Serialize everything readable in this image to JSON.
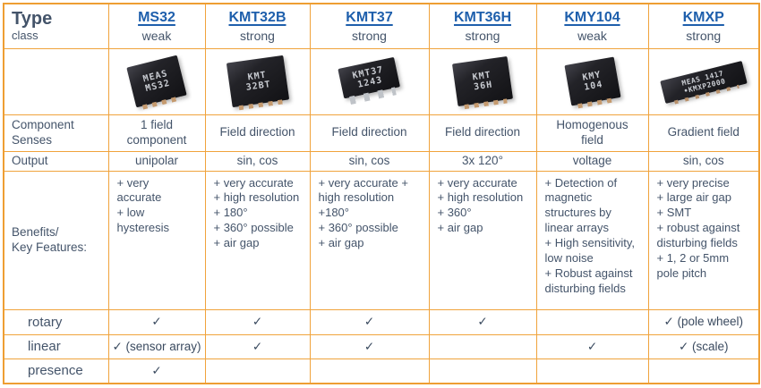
{
  "colors": {
    "border_orange": "#F0A33C",
    "text_slate": "#44546A",
    "link_blue": "#1E5FAC",
    "check_color": "#3A4A5F"
  },
  "table": {
    "corner": {
      "title": "Type",
      "subtitle": "class"
    },
    "columns": [
      {
        "id": "ms32",
        "name": "MS32",
        "strength": "weak",
        "chip": {
          "style": "qfn",
          "lines": [
            "MEAS",
            "MS32"
          ]
        }
      },
      {
        "id": "kmt32b",
        "name": "KMT32B",
        "strength": "strong",
        "chip": {
          "style": "qfn2",
          "lines": [
            "KMT",
            "32BT"
          ]
        }
      },
      {
        "id": "kmt37",
        "name": "KMT37",
        "strength": "strong",
        "chip": {
          "style": "soic",
          "lines": [
            "KMT37",
            "1243"
          ]
        }
      },
      {
        "id": "kmt36h",
        "name": "KMT36H",
        "strength": "strong",
        "chip": {
          "style": "qfn3",
          "lines": [
            "KMT",
            "36H"
          ]
        }
      },
      {
        "id": "kmy104",
        "name": "KMY104",
        "strength": "weak",
        "chip": {
          "style": "qfn4",
          "lines": [
            "KMY",
            "104"
          ]
        }
      },
      {
        "id": "kmxp",
        "name": "KMXP",
        "strength": "strong",
        "chip": {
          "style": "wide",
          "lines": [
            "MEAS  1417",
            "•KMXP2000"
          ]
        }
      }
    ],
    "rows": [
      {
        "id": "component_senses",
        "label": "Component\nSenses",
        "values": [
          "1 field\ncomponent",
          "Field direction",
          "Field direction",
          "Field direction",
          "Homogenous\nfield",
          "Gradient field"
        ]
      },
      {
        "id": "output",
        "label": "Output",
        "values": [
          "unipolar",
          "sin, cos",
          "sin, cos",
          "3x 120°",
          "voltage",
          "sin, cos"
        ]
      },
      {
        "id": "benefits",
        "label": "Benefits/\nKey Features:",
        "values": [
          "+ very\naccurate\n+ low\nhysteresis",
          "+ very accurate\n+ high resolution\n+ 180°\n+ 360° possible\n+ air gap",
          "+ very accurate +\nhigh resolution\n+180°\n+ 360° possible\n+ air gap",
          "+ very accurate\n+ high resolution\n+ 360°\n+ air gap",
          "+ Detection of\nmagnetic\nstructures by\nlinear arrays\n+ High sensitivity,\nlow noise\n+ Robust against\ndisturbing fields",
          "+ very precise\n+ large air gap\n+ SMT\n+ robust against\ndisturbing fields\n+ 1, 2 or 5mm\npole pitch"
        ]
      },
      {
        "id": "rotary",
        "label": "rotary",
        "values": [
          "✓",
          "✓",
          "✓",
          "✓",
          "",
          "✓ (pole wheel)"
        ]
      },
      {
        "id": "linear",
        "label": "linear",
        "values": [
          "✓ (sensor array)",
          "✓",
          "✓",
          "",
          "✓",
          "✓ (scale)"
        ]
      },
      {
        "id": "presence",
        "label": "presence",
        "values": [
          "✓",
          "",
          "",
          "",
          "",
          ""
        ]
      }
    ]
  }
}
